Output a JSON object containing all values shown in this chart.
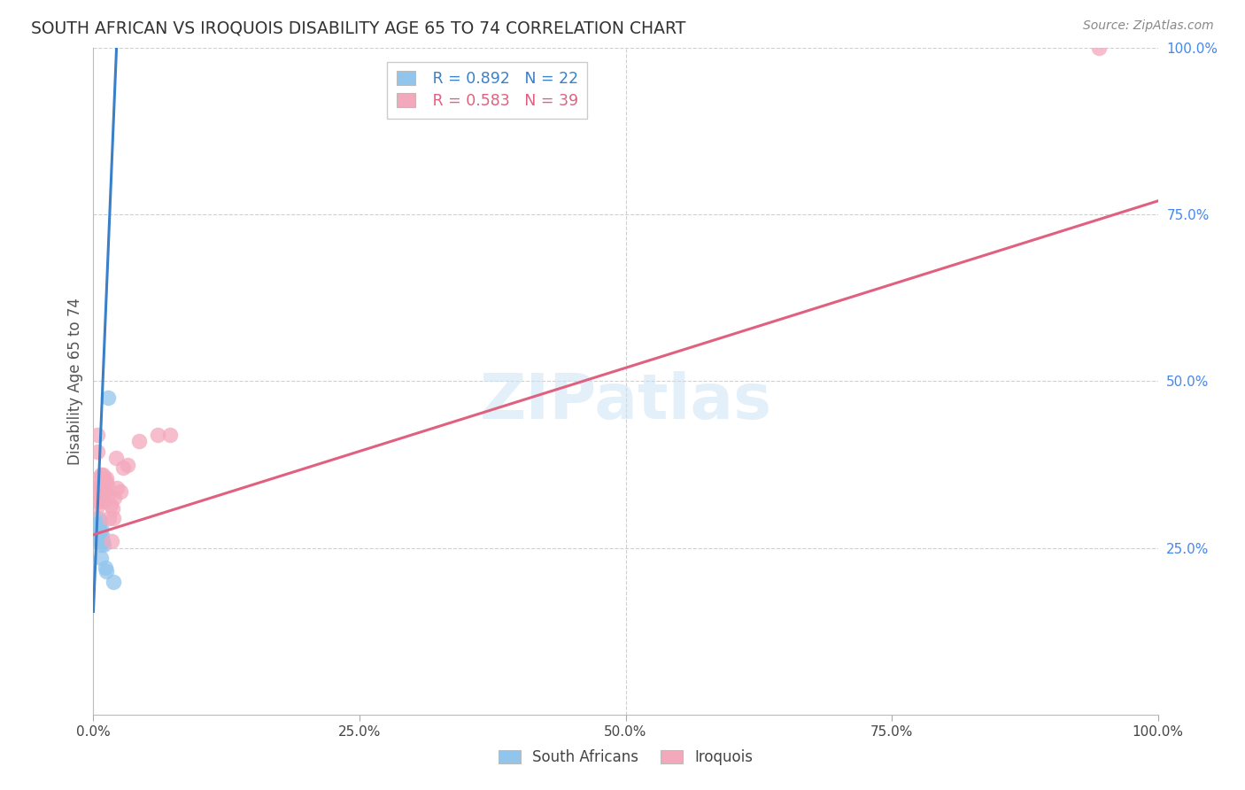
{
  "title": "SOUTH AFRICAN VS IROQUOIS DISABILITY AGE 65 TO 74 CORRELATION CHART",
  "source": "Source: ZipAtlas.com",
  "ylabel": "Disability Age 65 to 74",
  "xlim": [
    0.0,
    1.0
  ],
  "ylim": [
    0.0,
    1.0
  ],
  "xticks": [
    0.0,
    0.25,
    0.5,
    0.75,
    1.0
  ],
  "xticklabels": [
    "0.0%",
    "25.0%",
    "50.0%",
    "75.0%",
    "100.0%"
  ],
  "yticks": [
    0.25,
    0.5,
    0.75,
    1.0
  ],
  "yticklabels": [
    "25.0%",
    "50.0%",
    "75.0%",
    "100.0%"
  ],
  "south_african_color": "#92C5EC",
  "iroquois_color": "#F4A8BC",
  "south_african_line_color": "#3A80C8",
  "iroquois_line_color": "#E06080",
  "south_african_R": 0.892,
  "south_african_N": 22,
  "iroquois_R": 0.583,
  "iroquois_N": 39,
  "legend_label_sa": "South Africans",
  "legend_label_ir": "Iroquois",
  "watermark": "ZIPatlas",
  "background_color": "#ffffff",
  "grid_color": "#d0d0d0",
  "title_color": "#333333",
  "axis_label_color": "#555555",
  "right_ytick_color": "#4488EE",
  "south_african_points": [
    [
      0.003,
      0.265
    ],
    [
      0.004,
      0.28
    ],
    [
      0.004,
      0.27
    ],
    [
      0.005,
      0.295
    ],
    [
      0.005,
      0.285
    ],
    [
      0.005,
      0.275
    ],
    [
      0.005,
      0.265
    ],
    [
      0.006,
      0.29
    ],
    [
      0.006,
      0.275
    ],
    [
      0.006,
      0.265
    ],
    [
      0.006,
      0.26
    ],
    [
      0.007,
      0.28
    ],
    [
      0.007,
      0.265
    ],
    [
      0.007,
      0.255
    ],
    [
      0.007,
      0.235
    ],
    [
      0.008,
      0.27
    ],
    [
      0.009,
      0.26
    ],
    [
      0.01,
      0.255
    ],
    [
      0.011,
      0.22
    ],
    [
      0.012,
      0.215
    ],
    [
      0.014,
      0.475
    ],
    [
      0.019,
      0.2
    ]
  ],
  "iroquois_points": [
    [
      0.003,
      0.31
    ],
    [
      0.004,
      0.42
    ],
    [
      0.004,
      0.395
    ],
    [
      0.005,
      0.355
    ],
    [
      0.005,
      0.34
    ],
    [
      0.005,
      0.32
    ],
    [
      0.006,
      0.345
    ],
    [
      0.006,
      0.33
    ],
    [
      0.007,
      0.36
    ],
    [
      0.007,
      0.34
    ],
    [
      0.007,
      0.325
    ],
    [
      0.008,
      0.355
    ],
    [
      0.008,
      0.34
    ],
    [
      0.008,
      0.33
    ],
    [
      0.009,
      0.36
    ],
    [
      0.009,
      0.345
    ],
    [
      0.009,
      0.32
    ],
    [
      0.01,
      0.355
    ],
    [
      0.01,
      0.34
    ],
    [
      0.011,
      0.35
    ],
    [
      0.011,
      0.335
    ],
    [
      0.012,
      0.355
    ],
    [
      0.013,
      0.345
    ],
    [
      0.014,
      0.33
    ],
    [
      0.015,
      0.295
    ],
    [
      0.016,
      0.315
    ],
    [
      0.017,
      0.26
    ],
    [
      0.018,
      0.31
    ],
    [
      0.019,
      0.295
    ],
    [
      0.02,
      0.325
    ],
    [
      0.021,
      0.385
    ],
    [
      0.022,
      0.34
    ],
    [
      0.025,
      0.335
    ],
    [
      0.028,
      0.37
    ],
    [
      0.032,
      0.375
    ],
    [
      0.043,
      0.41
    ],
    [
      0.06,
      0.42
    ],
    [
      0.072,
      0.42
    ],
    [
      0.945,
      1.0
    ]
  ],
  "sa_line_x": [
    0.0,
    0.022
  ],
  "sa_line_y": [
    0.155,
    1.01
  ],
  "ir_line_x": [
    0.0,
    1.0
  ],
  "ir_line_y": [
    0.27,
    0.77
  ]
}
